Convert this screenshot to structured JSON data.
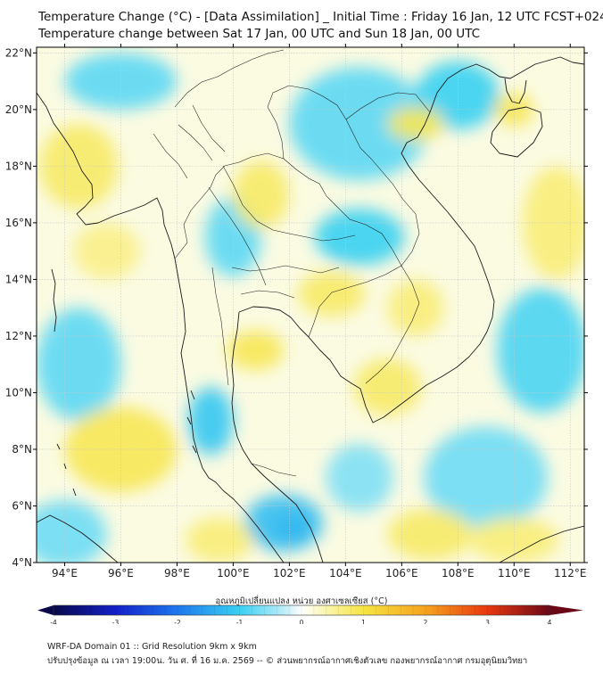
{
  "title": {
    "line1": "Temperature Change (°C) - [Data Assimilation] _ Initial Time : Friday 16 Jan, 12 UTC FCST+024",
    "line2": "Temperature change between Sat 17 Jan, 00 UTC and Sun 18 Jan, 00 UTC"
  },
  "map": {
    "lon_range": [
      93,
      112.5
    ],
    "lat_range": [
      4,
      22.2
    ],
    "lon_ticks": [
      {
        "value": 94,
        "label": "94°E"
      },
      {
        "value": 96,
        "label": "96°E"
      },
      {
        "value": 98,
        "label": "98°E"
      },
      {
        "value": 100,
        "label": "100°E"
      },
      {
        "value": 102,
        "label": "102°E"
      },
      {
        "value": 104,
        "label": "104°E"
      },
      {
        "value": 106,
        "label": "106°E"
      },
      {
        "value": 108,
        "label": "108°E"
      },
      {
        "value": 110,
        "label": "110°E"
      },
      {
        "value": 112,
        "label": "112°E"
      }
    ],
    "lat_ticks": [
      {
        "value": 4,
        "label": "4°N"
      },
      {
        "value": 6,
        "label": "6°N"
      },
      {
        "value": 8,
        "label": "8°N"
      },
      {
        "value": 10,
        "label": "10°N"
      },
      {
        "value": 12,
        "label": "12°N"
      },
      {
        "value": 14,
        "label": "14°N"
      },
      {
        "value": 16,
        "label": "16°N"
      },
      {
        "value": 18,
        "label": "18°N"
      },
      {
        "value": 20,
        "label": "20°N"
      },
      {
        "value": 22,
        "label": "22°N"
      }
    ],
    "background_color": "#fbfbe2",
    "field_anomalies": [
      {
        "lon": 102.1,
        "lat": 5.2,
        "value": -1.9,
        "rlon": 0.6,
        "rlat": 0.5
      },
      {
        "lon": 101.8,
        "lat": 5.4,
        "value": -1.2,
        "rlon": 1.4,
        "rlat": 1.0
      },
      {
        "lon": 99.2,
        "lat": 9.0,
        "value": -1.1,
        "rlon": 0.8,
        "rlat": 1.2
      },
      {
        "lon": 104.5,
        "lat": 15.5,
        "value": -1.0,
        "rlon": 1.6,
        "rlat": 1.0
      },
      {
        "lon": 100.0,
        "lat": 15.5,
        "value": -0.8,
        "rlon": 1.0,
        "rlat": 1.4
      },
      {
        "lon": 104.5,
        "lat": 19.5,
        "value": -0.8,
        "rlon": 2.5,
        "rlat": 2.0
      },
      {
        "lon": 96.0,
        "lat": 21.0,
        "value": -0.8,
        "rlon": 2.0,
        "rlat": 1.0
      },
      {
        "lon": 94.5,
        "lat": 11.0,
        "value": -0.8,
        "rlon": 1.5,
        "rlat": 2.0
      },
      {
        "lon": 111.0,
        "lat": 11.5,
        "value": -0.9,
        "rlon": 1.6,
        "rlat": 2.2
      },
      {
        "lon": 108.0,
        "lat": 20.5,
        "value": -1.0,
        "rlon": 1.5,
        "rlat": 1.2
      },
      {
        "lon": 109.0,
        "lat": 7.0,
        "value": -0.7,
        "rlon": 2.2,
        "rlat": 1.8
      },
      {
        "lon": 94.0,
        "lat": 5.0,
        "value": -0.7,
        "rlon": 1.5,
        "rlat": 1.2
      },
      {
        "lon": 104.5,
        "lat": 7.0,
        "value": -0.6,
        "rlon": 1.2,
        "rlat": 1.2
      },
      {
        "lon": 110.0,
        "lat": 20.0,
        "value": 0.9,
        "rlon": 0.7,
        "rlat": 0.6
      },
      {
        "lon": 106.5,
        "lat": 19.5,
        "value": 0.9,
        "rlon": 1.0,
        "rlat": 0.6
      },
      {
        "lon": 101.0,
        "lat": 17.0,
        "value": 0.8,
        "rlon": 1.0,
        "rlat": 1.2
      },
      {
        "lon": 103.5,
        "lat": 13.5,
        "value": 0.8,
        "rlon": 1.2,
        "rlat": 0.8
      },
      {
        "lon": 106.5,
        "lat": 13.0,
        "value": 0.7,
        "rlon": 1.0,
        "rlat": 1.0
      },
      {
        "lon": 100.8,
        "lat": 11.5,
        "value": 0.9,
        "rlon": 1.0,
        "rlat": 0.7
      },
      {
        "lon": 105.5,
        "lat": 10.2,
        "value": 0.8,
        "rlon": 1.2,
        "rlat": 1.0
      },
      {
        "lon": 96.0,
        "lat": 8.0,
        "value": 0.9,
        "rlon": 2.0,
        "rlat": 1.5
      },
      {
        "lon": 94.5,
        "lat": 18.0,
        "value": 0.8,
        "rlon": 1.4,
        "rlat": 1.5
      },
      {
        "lon": 95.5,
        "lat": 15.0,
        "value": 0.6,
        "rlon": 1.2,
        "rlat": 1.0
      },
      {
        "lon": 111.5,
        "lat": 16.0,
        "value": 0.7,
        "rlon": 1.2,
        "rlat": 2.0
      },
      {
        "lon": 107.0,
        "lat": 5.0,
        "value": 0.8,
        "rlon": 1.5,
        "rlat": 0.9
      },
      {
        "lon": 110.0,
        "lat": 4.8,
        "value": 0.7,
        "rlon": 1.6,
        "rlat": 0.8
      },
      {
        "lon": 99.5,
        "lat": 4.8,
        "value": 0.7,
        "rlon": 1.2,
        "rlat": 0.8
      }
    ]
  },
  "colorbar": {
    "title": "อุณหภูมิเปลี่ยนแปลง หน่วย องศาเซลเซียส (°C)",
    "min": -4,
    "max": 4,
    "ticks": [
      {
        "value": -4,
        "label": "-4"
      },
      {
        "value": -3,
        "label": "-3"
      },
      {
        "value": -2,
        "label": "-2"
      },
      {
        "value": -1,
        "label": "-1"
      },
      {
        "value": 0,
        "label": "0"
      },
      {
        "value": 1,
        "label": "1"
      },
      {
        "value": 2,
        "label": "2"
      },
      {
        "value": 3,
        "label": "3"
      },
      {
        "value": 4,
        "label": "4"
      }
    ],
    "color_stops": [
      {
        "value": -4,
        "color": "#08084a"
      },
      {
        "value": -3,
        "color": "#1420c8"
      },
      {
        "value": -2,
        "color": "#1e78ee"
      },
      {
        "value": -1,
        "color": "#38d0f2"
      },
      {
        "value": -0.3,
        "color": "#b8ecf8"
      },
      {
        "value": 0,
        "color": "#ffffff"
      },
      {
        "value": 0.3,
        "color": "#fbf8c0"
      },
      {
        "value": 1,
        "color": "#f6e442"
      },
      {
        "value": 2,
        "color": "#f6a21e"
      },
      {
        "value": 3,
        "color": "#e8380e"
      },
      {
        "value": 4,
        "color": "#6a0818"
      }
    ]
  },
  "footer": {
    "line1": "WRF-DA Domain 01 :: Grid Resolution 9km x 9km",
    "line2": "ปรับปรุงข้อมูล ณ เวลา 19:00น. วัน ศ. ที่ 16 ม.ค. 2569 -- © ส่วนพยากรณ์อากาศเชิงตัวเลข กองพยากรณ์อากาศ กรมอุตุนิยมวิทยา"
  }
}
